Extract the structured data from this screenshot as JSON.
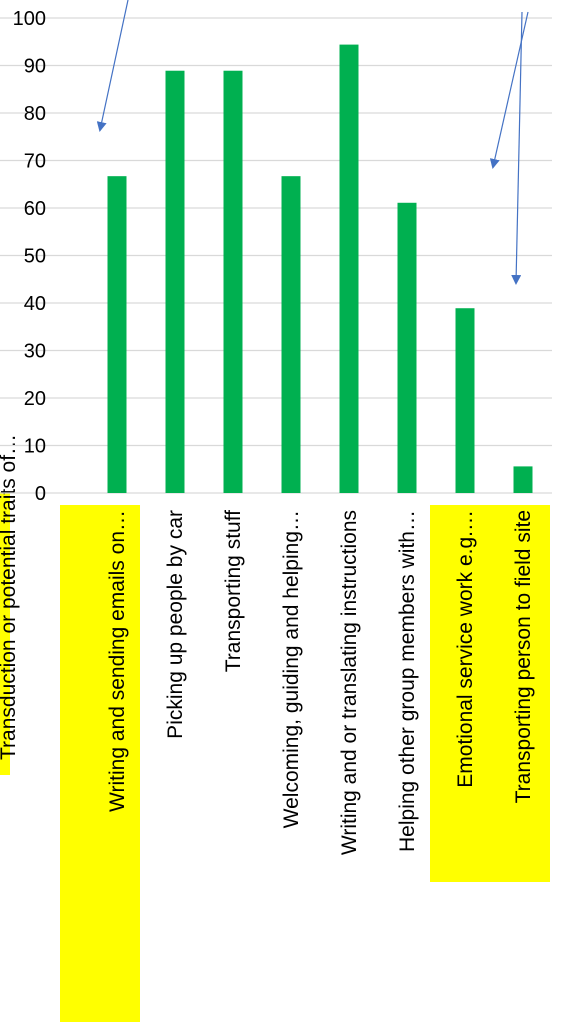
{
  "chart_data": {
    "type": "bar",
    "title": "",
    "xlabel": "",
    "ylabel": "",
    "ylim": [
      0,
      100
    ],
    "yticks": [
      0,
      10,
      20,
      30,
      40,
      50,
      60,
      70,
      80,
      90,
      100
    ],
    "grid": true,
    "legend": "none",
    "categories": [
      "Writing and sending emails on…",
      "Picking up people by car",
      "Transporting stuff",
      "Welcoming, guiding and helping…",
      "Writing and or translating instructions",
      "Helping other group members with…",
      "Emotional service work e.g.…",
      "Transporting person to field site"
    ],
    "values": [
      66.7,
      88.9,
      88.9,
      66.7,
      94.4,
      61.1,
      38.9,
      5.6
    ],
    "highlighted_categories": [
      0,
      6,
      7
    ],
    "left_partial_label": "Transduction or potential traits of…",
    "colors": {
      "bar": "#00b050",
      "grid": "#d9d9d9",
      "axis": "#d9d9d9",
      "highlight": "#ffff00",
      "arrow": "#4472c4",
      "text": "#000000"
    }
  }
}
